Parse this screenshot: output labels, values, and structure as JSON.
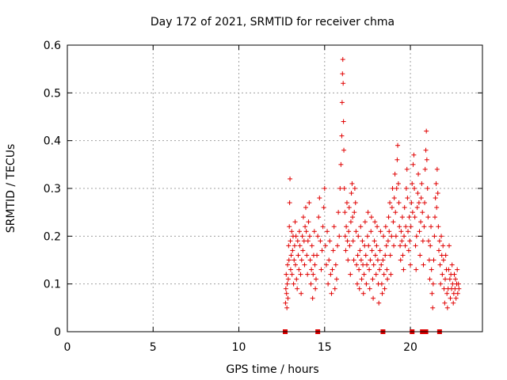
{
  "chart_data": {
    "type": "scatter",
    "title": "Day 172 of 2021, SRMTID for receiver chma",
    "xlabel": "GPS time / hours",
    "ylabel": "SRMTID / TECUs",
    "xlim": [
      0,
      24.2
    ],
    "ylim": [
      0,
      0.6
    ],
    "xticks": [
      0,
      5,
      10,
      15,
      20
    ],
    "yticks": [
      0,
      0.1,
      0.2,
      0.3,
      0.4,
      0.5,
      0.6
    ],
    "grid": true,
    "marker": "+",
    "color": "#e00000",
    "zero_markers_x": [
      12.7,
      14.6,
      18.4,
      20.1,
      20.7,
      20.8,
      20.9,
      21.7
    ],
    "points": [
      [
        12.72,
        0.06
      ],
      [
        12.74,
        0.09
      ],
      [
        12.76,
        0.12
      ],
      [
        12.78,
        0.08
      ],
      [
        12.8,
        0.05
      ],
      [
        12.82,
        0.1
      ],
      [
        12.84,
        0.14
      ],
      [
        12.86,
        0.07
      ],
      [
        12.88,
        0.11
      ],
      [
        12.9,
        0.18
      ],
      [
        12.92,
        0.15
      ],
      [
        12.94,
        0.22
      ],
      [
        12.96,
        0.27
      ],
      [
        12.98,
        0.32
      ],
      [
        13.0,
        0.19
      ],
      [
        13.02,
        0.13
      ],
      [
        13.05,
        0.16
      ],
      [
        13.08,
        0.21
      ],
      [
        13.1,
        0.12
      ],
      [
        13.13,
        0.17
      ],
      [
        13.16,
        0.2
      ],
      [
        13.19,
        0.1
      ],
      [
        13.22,
        0.15
      ],
      [
        13.25,
        0.18
      ],
      [
        13.28,
        0.23
      ],
      [
        13.3,
        0.14
      ],
      [
        13.33,
        0.2
      ],
      [
        13.36,
        0.11
      ],
      [
        13.4,
        0.09
      ],
      [
        13.43,
        0.19
      ],
      [
        13.46,
        0.16
      ],
      [
        13.5,
        0.13
      ],
      [
        13.53,
        0.21
      ],
      [
        13.56,
        0.18
      ],
      [
        13.6,
        0.12
      ],
      [
        13.63,
        0.08
      ],
      [
        13.66,
        0.15
      ],
      [
        13.7,
        0.2
      ],
      [
        13.73,
        0.17
      ],
      [
        13.76,
        0.24
      ],
      [
        13.8,
        0.19
      ],
      [
        13.83,
        0.14
      ],
      [
        13.86,
        0.22
      ],
      [
        13.9,
        0.26
      ],
      [
        13.93,
        0.21
      ],
      [
        13.96,
        0.16
      ],
      [
        14.0,
        0.12
      ],
      [
        14.03,
        0.19
      ],
      [
        14.06,
        0.23
      ],
      [
        14.1,
        0.27
      ],
      [
        14.13,
        0.2
      ],
      [
        14.16,
        0.15
      ],
      [
        14.2,
        0.1
      ],
      [
        14.23,
        0.13
      ],
      [
        14.26,
        0.18
      ],
      [
        14.3,
        0.07
      ],
      [
        14.33,
        0.12
      ],
      [
        14.36,
        0.16
      ],
      [
        14.4,
        0.21
      ],
      [
        14.43,
        0.14
      ],
      [
        14.46,
        0.09
      ],
      [
        14.5,
        0.11
      ],
      [
        14.55,
        0.16
      ],
      [
        14.6,
        0.2
      ],
      [
        14.65,
        0.24
      ],
      [
        14.7,
        0.28
      ],
      [
        14.75,
        0.19
      ],
      [
        14.8,
        0.13
      ],
      [
        14.85,
        0.17
      ],
      [
        14.9,
        0.22
      ],
      [
        14.95,
        0.26
      ],
      [
        15.0,
        0.3
      ],
      [
        15.05,
        0.18
      ],
      [
        15.1,
        0.14
      ],
      [
        15.15,
        0.21
      ],
      [
        15.2,
        0.1
      ],
      [
        15.25,
        0.15
      ],
      [
        15.3,
        0.19
      ],
      [
        15.35,
        0.12
      ],
      [
        15.4,
        0.08
      ],
      [
        15.45,
        0.13
      ],
      [
        15.5,
        0.17
      ],
      [
        15.55,
        0.22
      ],
      [
        15.6,
        0.09
      ],
      [
        15.65,
        0.14
      ],
      [
        15.7,
        0.11
      ],
      [
        15.75,
        0.18
      ],
      [
        15.8,
        0.25
      ],
      [
        15.85,
        0.2
      ],
      [
        15.9,
        0.3
      ],
      [
        15.95,
        0.35
      ],
      [
        16.0,
        0.41
      ],
      [
        16.02,
        0.48
      ],
      [
        16.04,
        0.54
      ],
      [
        16.06,
        0.57
      ],
      [
        16.08,
        0.52
      ],
      [
        16.1,
        0.44
      ],
      [
        16.12,
        0.38
      ],
      [
        16.15,
        0.3
      ],
      [
        16.18,
        0.25
      ],
      [
        16.2,
        0.2
      ],
      [
        16.23,
        0.17
      ],
      [
        16.26,
        0.22
      ],
      [
        16.3,
        0.27
      ],
      [
        16.33,
        0.19
      ],
      [
        16.36,
        0.15
      ],
      [
        16.4,
        0.21
      ],
      [
        16.43,
        0.26
      ],
      [
        16.46,
        0.18
      ],
      [
        16.5,
        0.12
      ],
      [
        16.53,
        0.23
      ],
      [
        16.56,
        0.29
      ],
      [
        16.6,
        0.31
      ],
      [
        16.63,
        0.24
      ],
      [
        16.66,
        0.19
      ],
      [
        16.7,
        0.15
      ],
      [
        16.73,
        0.25
      ],
      [
        16.76,
        0.3
      ],
      [
        16.8,
        0.27
      ],
      [
        16.83,
        0.21
      ],
      [
        16.86,
        0.14
      ],
      [
        16.9,
        0.1
      ],
      [
        16.93,
        0.16
      ],
      [
        16.96,
        0.2
      ],
      [
        17.0,
        0.13
      ],
      [
        17.03,
        0.09
      ],
      [
        17.06,
        0.17
      ],
      [
        17.1,
        0.22
      ],
      [
        17.13,
        0.15
      ],
      [
        17.16,
        0.11
      ],
      [
        17.2,
        0.19
      ],
      [
        17.23,
        0.14
      ],
      [
        17.26,
        0.08
      ],
      [
        17.3,
        0.12
      ],
      [
        17.33,
        0.18
      ],
      [
        17.36,
        0.23
      ],
      [
        17.4,
        0.16
      ],
      [
        17.43,
        0.1
      ],
      [
        17.46,
        0.14
      ],
      [
        17.5,
        0.2
      ],
      [
        17.53,
        0.25
      ],
      [
        17.56,
        0.18
      ],
      [
        17.6,
        0.13
      ],
      [
        17.63,
        0.09
      ],
      [
        17.66,
        0.15
      ],
      [
        17.7,
        0.21
      ],
      [
        17.73,
        0.24
      ],
      [
        17.76,
        0.17
      ],
      [
        17.8,
        0.11
      ],
      [
        17.83,
        0.07
      ],
      [
        17.86,
        0.14
      ],
      [
        17.9,
        0.19
      ],
      [
        17.93,
        0.23
      ],
      [
        17.96,
        0.16
      ],
      [
        18.0,
        0.12
      ],
      [
        18.03,
        0.18
      ],
      [
        18.06,
        0.22
      ],
      [
        18.1,
        0.15
      ],
      [
        18.13,
        0.1
      ],
      [
        18.16,
        0.06
      ],
      [
        18.2,
        0.13
      ],
      [
        18.23,
        0.17
      ],
      [
        18.26,
        0.21
      ],
      [
        18.3,
        0.14
      ],
      [
        18.33,
        0.1
      ],
      [
        18.36,
        0.08
      ],
      [
        18.4,
        0.15
      ],
      [
        18.43,
        0.2
      ],
      [
        18.46,
        0.12
      ],
      [
        18.5,
        0.09
      ],
      [
        18.53,
        0.16
      ],
      [
        18.56,
        0.22
      ],
      [
        18.6,
        0.18
      ],
      [
        18.63,
        0.13
      ],
      [
        18.66,
        0.11
      ],
      [
        18.7,
        0.19
      ],
      [
        18.73,
        0.24
      ],
      [
        18.76,
        0.21
      ],
      [
        18.8,
        0.27
      ],
      [
        18.83,
        0.16
      ],
      [
        18.86,
        0.12
      ],
      [
        18.9,
        0.2
      ],
      [
        18.93,
        0.26
      ],
      [
        18.96,
        0.3
      ],
      [
        19.0,
        0.23
      ],
      [
        19.03,
        0.18
      ],
      [
        19.06,
        0.28
      ],
      [
        19.1,
        0.33
      ],
      [
        19.13,
        0.25
      ],
      [
        19.16,
        0.2
      ],
      [
        19.2,
        0.3
      ],
      [
        19.23,
        0.36
      ],
      [
        19.26,
        0.39
      ],
      [
        19.3,
        0.31
      ],
      [
        19.33,
        0.27
      ],
      [
        19.36,
        0.22
      ],
      [
        19.4,
        0.18
      ],
      [
        19.43,
        0.15
      ],
      [
        19.46,
        0.21
      ],
      [
        19.5,
        0.19
      ],
      [
        19.53,
        0.24
      ],
      [
        19.56,
        0.16
      ],
      [
        19.6,
        0.13
      ],
      [
        19.63,
        0.2
      ],
      [
        19.66,
        0.26
      ],
      [
        19.7,
        0.18
      ],
      [
        19.73,
        0.22
      ],
      [
        19.76,
        0.3
      ],
      [
        19.8,
        0.34
      ],
      [
        19.83,
        0.28
      ],
      [
        19.86,
        0.21
      ],
      [
        19.9,
        0.17
      ],
      [
        19.93,
        0.24
      ],
      [
        19.96,
        0.19
      ],
      [
        20.0,
        0.14
      ],
      [
        20.03,
        0.22
      ],
      [
        20.06,
        0.27
      ],
      [
        20.1,
        0.31
      ],
      [
        20.13,
        0.25
      ],
      [
        20.16,
        0.35
      ],
      [
        20.2,
        0.37
      ],
      [
        20.23,
        0.3
      ],
      [
        20.26,
        0.24
      ],
      [
        20.3,
        0.18
      ],
      [
        20.33,
        0.13
      ],
      [
        20.36,
        0.2
      ],
      [
        20.4,
        0.26
      ],
      [
        20.43,
        0.29
      ],
      [
        20.46,
        0.33
      ],
      [
        20.5,
        0.27
      ],
      [
        20.53,
        0.21
      ],
      [
        20.56,
        0.16
      ],
      [
        20.6,
        0.23
      ],
      [
        20.63,
        0.28
      ],
      [
        20.66,
        0.31
      ],
      [
        20.7,
        0.25
      ],
      [
        20.73,
        0.19
      ],
      [
        20.76,
        0.14
      ],
      [
        20.8,
        0.22
      ],
      [
        20.83,
        0.27
      ],
      [
        20.86,
        0.34
      ],
      [
        20.9,
        0.38
      ],
      [
        20.93,
        0.42
      ],
      [
        20.96,
        0.36
      ],
      [
        21.0,
        0.3
      ],
      [
        21.03,
        0.24
      ],
      [
        21.06,
        0.19
      ],
      [
        21.1,
        0.15
      ],
      [
        21.13,
        0.11
      ],
      [
        21.16,
        0.18
      ],
      [
        21.2,
        0.22
      ],
      [
        21.23,
        0.13
      ],
      [
        21.26,
        0.08
      ],
      [
        21.3,
        0.05
      ],
      [
        21.33,
        0.1
      ],
      [
        21.36,
        0.15
      ],
      [
        21.4,
        0.2
      ],
      [
        21.43,
        0.24
      ],
      [
        21.46,
        0.28
      ],
      [
        21.5,
        0.31
      ],
      [
        21.53,
        0.26
      ],
      [
        21.56,
        0.34
      ],
      [
        21.6,
        0.29
      ],
      [
        21.63,
        0.22
      ],
      [
        21.66,
        0.17
      ],
      [
        21.7,
        0.19
      ],
      [
        21.73,
        0.14
      ],
      [
        21.76,
        0.1
      ],
      [
        21.8,
        0.2
      ],
      [
        21.83,
        0.16
      ],
      [
        21.86,
        0.12
      ],
      [
        21.9,
        0.18
      ],
      [
        21.93,
        0.15
      ],
      [
        21.96,
        0.09
      ],
      [
        22.0,
        0.06
      ],
      [
        22.03,
        0.11
      ],
      [
        22.06,
        0.16
      ],
      [
        22.1,
        0.13
      ],
      [
        22.13,
        0.08
      ],
      [
        22.16,
        0.05
      ],
      [
        22.2,
        0.09
      ],
      [
        22.23,
        0.13
      ],
      [
        22.26,
        0.18
      ],
      [
        22.3,
        0.11
      ],
      [
        22.33,
        0.07
      ],
      [
        22.36,
        0.12
      ],
      [
        22.4,
        0.09
      ],
      [
        22.43,
        0.14
      ],
      [
        22.46,
        0.1
      ],
      [
        22.5,
        0.06
      ],
      [
        22.53,
        0.08
      ],
      [
        22.56,
        0.12
      ],
      [
        22.6,
        0.09
      ],
      [
        22.63,
        0.11
      ],
      [
        22.66,
        0.07
      ],
      [
        22.7,
        0.1
      ],
      [
        22.73,
        0.13
      ],
      [
        22.76,
        0.08
      ],
      [
        22.8,
        0.1
      ],
      [
        22.83,
        0.09
      ]
    ]
  }
}
